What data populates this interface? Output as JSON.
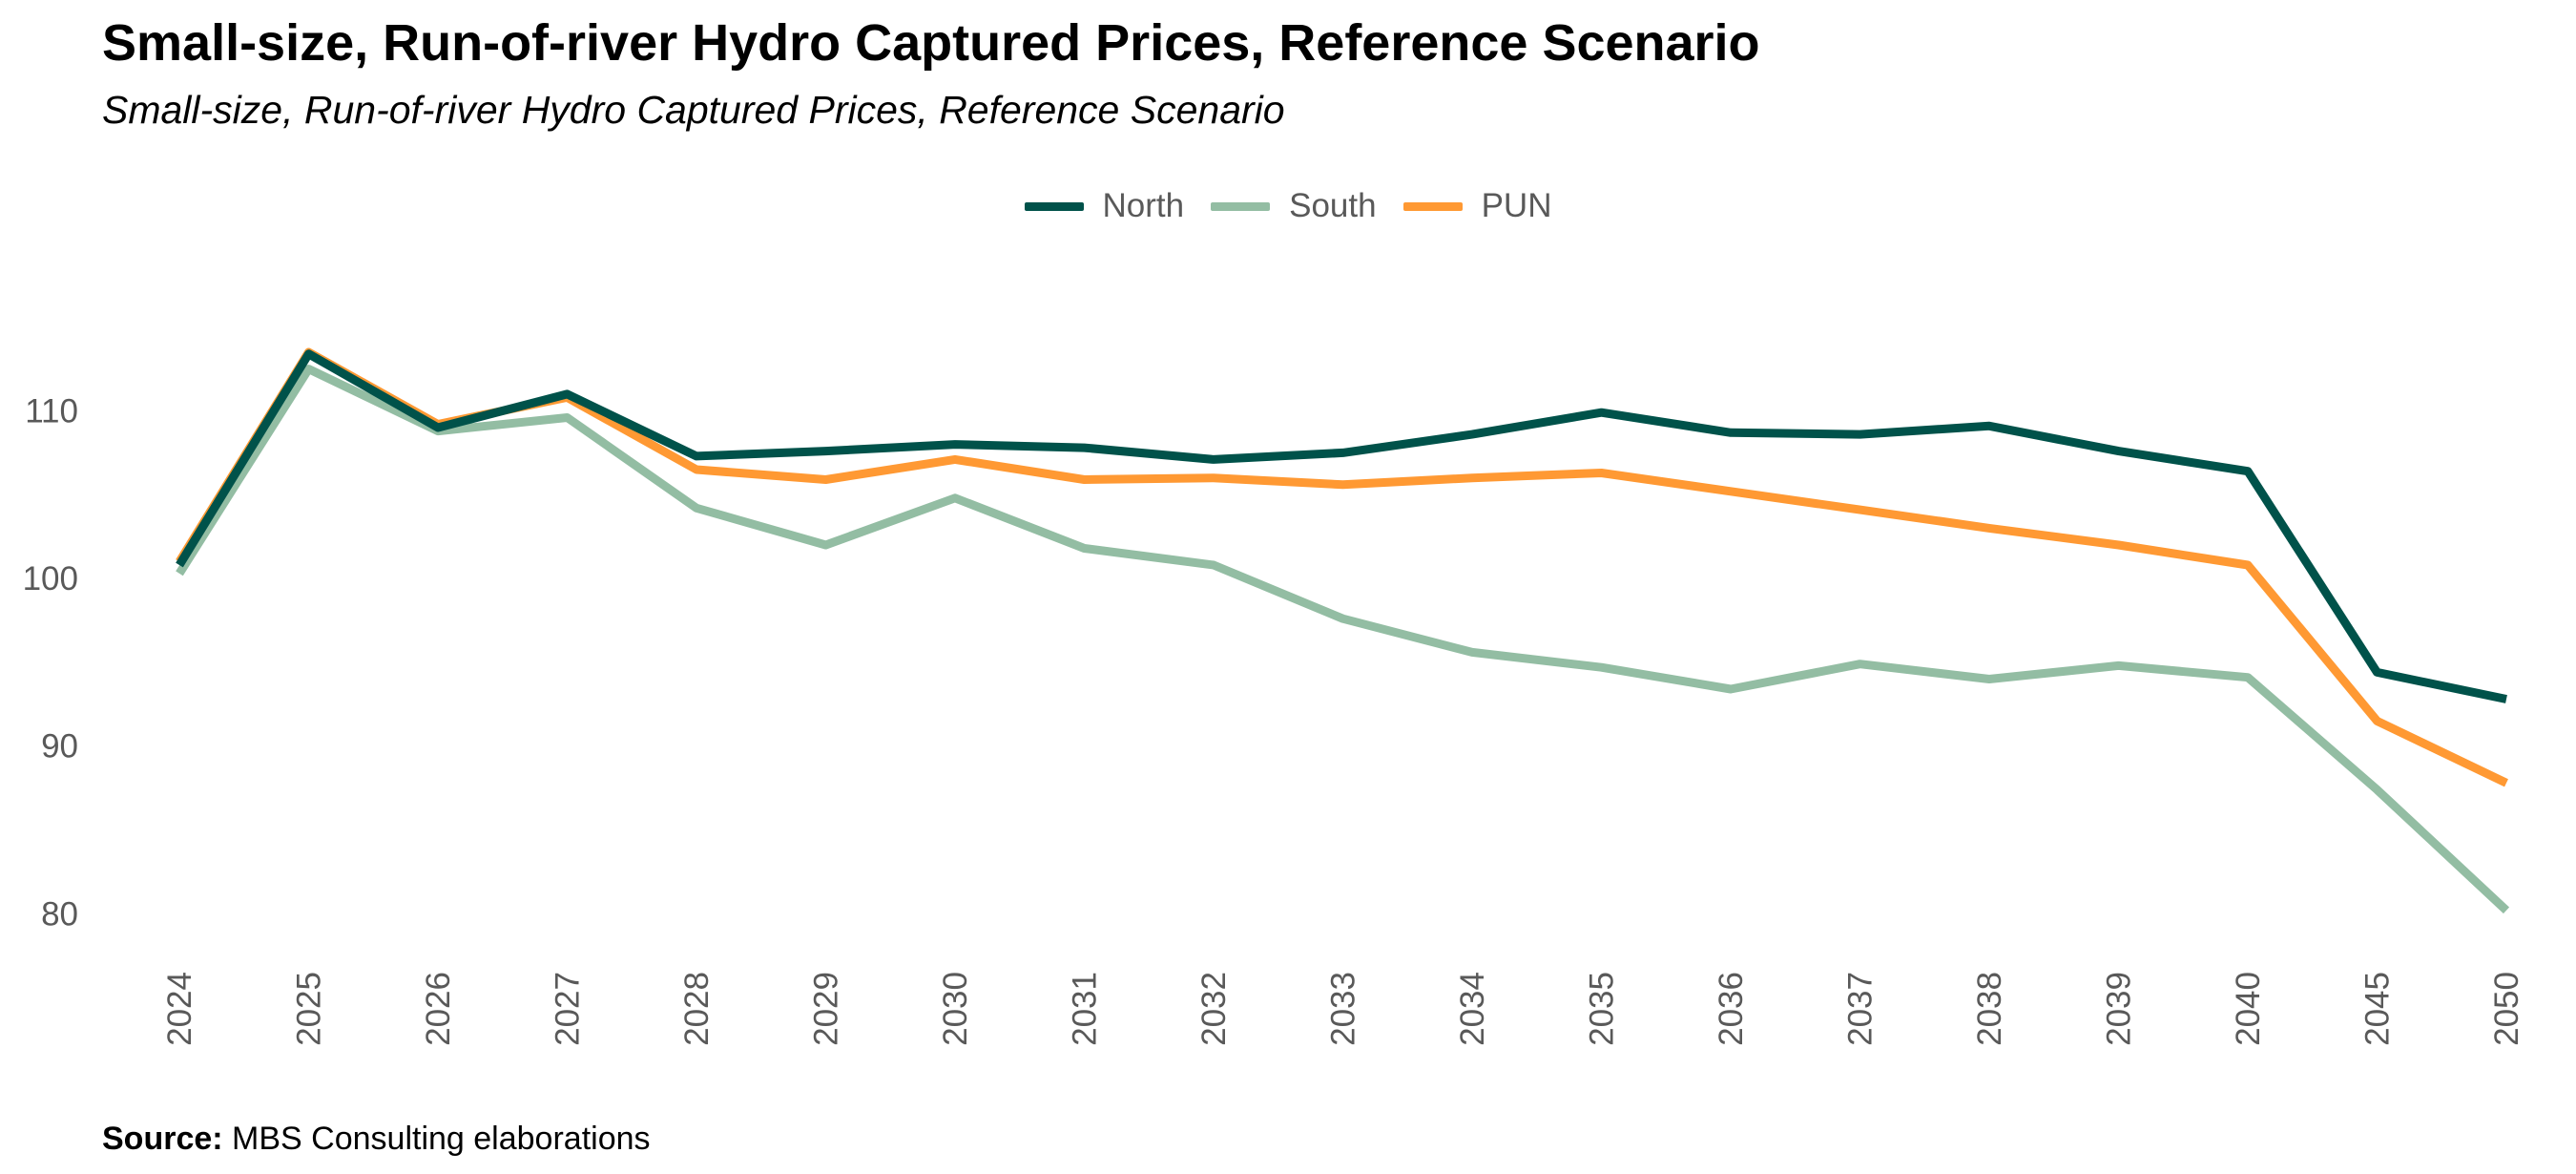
{
  "chart_data": {
    "type": "line",
    "title": "Small-size, Run-of-river Hydro Captured Prices, Reference Scenario",
    "subtitle": "Small-size, Run-of-river Hydro Captured Prices, Reference Scenario",
    "xlabel": "",
    "ylabel": "",
    "x": [
      "2024",
      "2025",
      "2026",
      "2027",
      "2028",
      "2029",
      "2030",
      "2031",
      "2032",
      "2033",
      "2034",
      "2035",
      "2036",
      "2037",
      "2038",
      "2039",
      "2040",
      "2045",
      "2050"
    ],
    "yticks": [
      80,
      90,
      100,
      110
    ],
    "ylim": [
      77,
      118
    ],
    "grid": false,
    "legend_position": "top-center",
    "series": [
      {
        "name": "North",
        "color": "#00524A",
        "values": [
          100.8,
          113.4,
          109.0,
          111.0,
          107.3,
          107.6,
          108.0,
          107.8,
          107.1,
          107.5,
          108.6,
          109.9,
          108.7,
          108.6,
          109.1,
          107.6,
          106.4,
          94.4,
          92.8
        ]
      },
      {
        "name": "South",
        "color": "#93BDA3",
        "values": [
          100.3,
          112.5,
          108.8,
          109.6,
          104.2,
          102.0,
          104.8,
          101.8,
          100.8,
          97.6,
          95.6,
          94.7,
          93.4,
          94.9,
          94.0,
          94.8,
          94.1,
          87.4,
          80.2
        ]
      },
      {
        "name": "PUN",
        "color": "#FF9933",
        "values": [
          101.0,
          113.5,
          109.2,
          110.8,
          106.5,
          105.9,
          107.1,
          105.9,
          106.0,
          105.6,
          106.0,
          106.3,
          105.2,
          104.1,
          103.0,
          102.0,
          100.8,
          91.5,
          87.8
        ]
      }
    ]
  },
  "source": {
    "label": "Source:",
    "text": "MBS Consulting elaborations"
  }
}
